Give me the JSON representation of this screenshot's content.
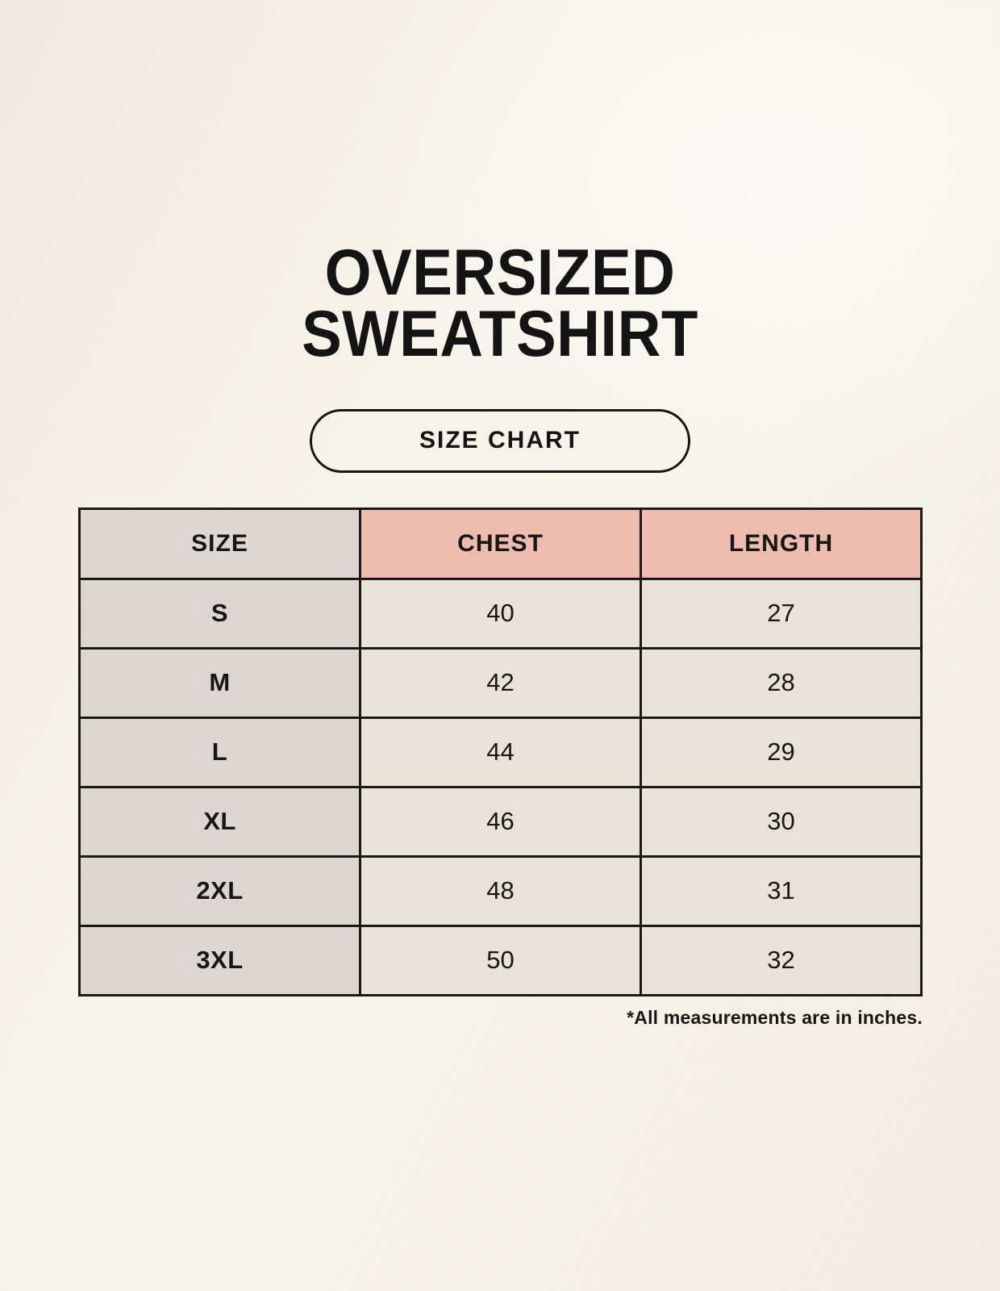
{
  "page": {
    "title_lines": [
      "OVERSIZED",
      "SWEATSHIRT"
    ],
    "badge_label": "SIZE CHART",
    "footnote": "*All measurements are in inches."
  },
  "colors": {
    "background": "#f8f3e9",
    "header_size_bg": "#ddd6d1",
    "header_measure_bg": "#edbcae",
    "row_label_bg": "#dcd5d0",
    "row_value_bg": "#e9e2d6",
    "border": "#1b1916",
    "text": "#141414"
  },
  "chart_data": {
    "type": "table",
    "title": "OVERSIZED SWEATSHIRT",
    "subtitle": "SIZE CHART",
    "columns": [
      "SIZE",
      "CHEST",
      "LENGTH"
    ],
    "rows": [
      [
        "S",
        40,
        27
      ],
      [
        "M",
        42,
        28
      ],
      [
        "L",
        44,
        29
      ],
      [
        "XL",
        46,
        30
      ],
      [
        "2XL",
        48,
        31
      ],
      [
        "3XL",
        50,
        32
      ]
    ],
    "units_note": "*All measurements are in inches."
  }
}
